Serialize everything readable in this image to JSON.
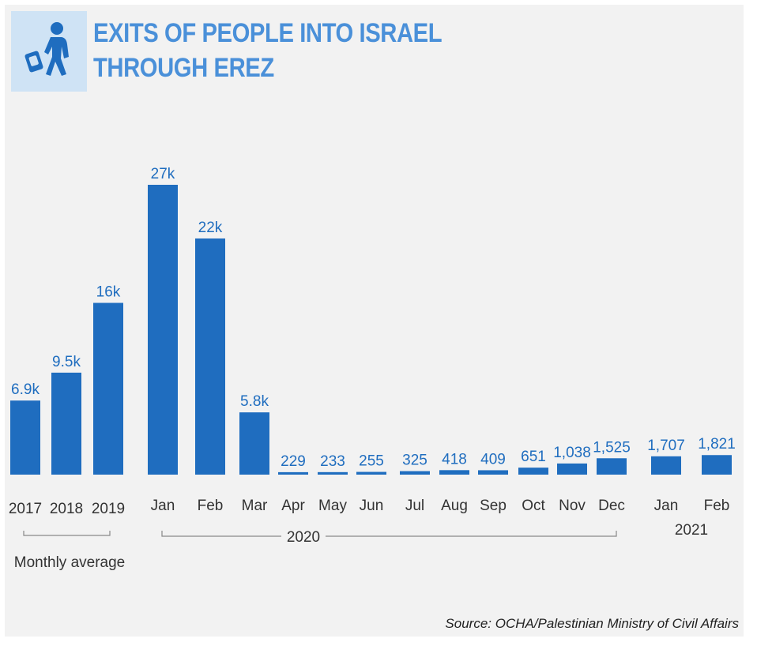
{
  "header": {
    "title_line1": "EXITS OF PEOPLE INTO ISRAEL",
    "title_line2": "THROUGH EREZ"
  },
  "icon": {
    "name": "walking-person-with-bag-icon",
    "color": "#1f6dbf"
  },
  "colors": {
    "bar": "#1f6dbf",
    "title": "#4a90d9",
    "icon_box": "#cfe3f5",
    "background": "#f2f2f2"
  },
  "source": "Source: OCHA/Palestinian Ministry of Civil Affairs",
  "chart_data": {
    "type": "bar",
    "categories": [
      "2017",
      "2018",
      "2019",
      "Jan",
      "Feb",
      "Mar",
      "Apr",
      "May",
      "Jun",
      "Jul",
      "Aug",
      "Sep",
      "Oct",
      "Nov",
      "Dec",
      "Jan",
      "Feb"
    ],
    "values": [
      6900,
      9500,
      16000,
      27000,
      22000,
      5800,
      229,
      233,
      255,
      325,
      418,
      409,
      651,
      1038,
      1525,
      1707,
      1821
    ],
    "value_labels": [
      "6.9k",
      "9.5k",
      "16k",
      "27k",
      "22k",
      "5.8k",
      "229",
      "233",
      "255",
      "325",
      "418",
      "409",
      "651",
      "1,038",
      "1,525",
      "1,707",
      "1,821"
    ],
    "groups": [
      {
        "label": "Monthly average",
        "from": 0,
        "to": 2
      },
      {
        "label": "2020",
        "from": 3,
        "to": 14
      },
      {
        "label": "2021",
        "from": 15,
        "to": 16
      }
    ],
    "ylim": [
      0,
      27000
    ],
    "grid": false,
    "legend": "none"
  }
}
